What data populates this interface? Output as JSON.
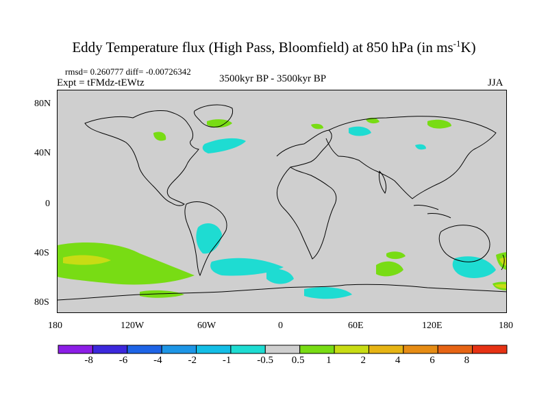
{
  "title": "Eddy Temperature flux (High Pass, Bloomfield) at 850 hPa (in ms",
  "title_sup": "-1",
  "title_end": "K)",
  "stats": "rmsd= 0.260777 diff= -0.00726342",
  "expt": "Expt = tFMdz-tEWtz",
  "period": "3500kyr BP - 3500kyr BP",
  "season": "JJA",
  "lat_labels": [
    "80N",
    "40N",
    "0",
    "40S",
    "80S"
  ],
  "lon_labels": [
    "180",
    "120W",
    "60W",
    "0",
    "60E",
    "120E",
    "180"
  ],
  "colorbar": {
    "colors": [
      "#8c1ee6",
      "#3c28dc",
      "#1e64e6",
      "#1e96e6",
      "#14bee6",
      "#1edcd2",
      "#cfcfcf",
      "#78dc14",
      "#c8dc14",
      "#e6b414",
      "#e68c14",
      "#e66414",
      "#e63214"
    ],
    "labels": [
      "-8",
      "-6",
      "-4",
      "-2",
      "-1",
      "-0.5",
      "0.5",
      "1",
      "2",
      "4",
      "6",
      "8"
    ]
  }
}
